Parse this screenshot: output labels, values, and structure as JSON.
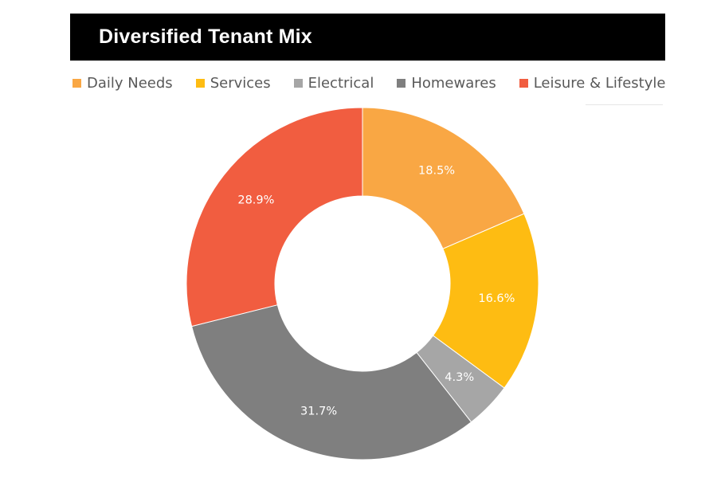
{
  "title": "Diversified Tenant Mix",
  "chart_data": {
    "type": "pie",
    "title": "Diversified Tenant Mix",
    "donut": true,
    "legend_position": "top",
    "start": "12 o'clock, clockwise",
    "slices": [
      {
        "label": "Daily Needs",
        "value": 18.5,
        "display": "18.5%",
        "color": "#F9A744"
      },
      {
        "label": "Services",
        "value": 16.6,
        "display": "16.6%",
        "color": "#FEBC12"
      },
      {
        "label": "Electrical",
        "value": 4.3,
        "display": "4.3%",
        "color": "#A6A6A6"
      },
      {
        "label": "Homewares",
        "value": 31.7,
        "display": "31.7%",
        "color": "#7F7F7F"
      },
      {
        "label": "Leisure & Lifestyle",
        "value": 28.9,
        "display": "28.9%",
        "color": "#F15D40"
      }
    ]
  }
}
